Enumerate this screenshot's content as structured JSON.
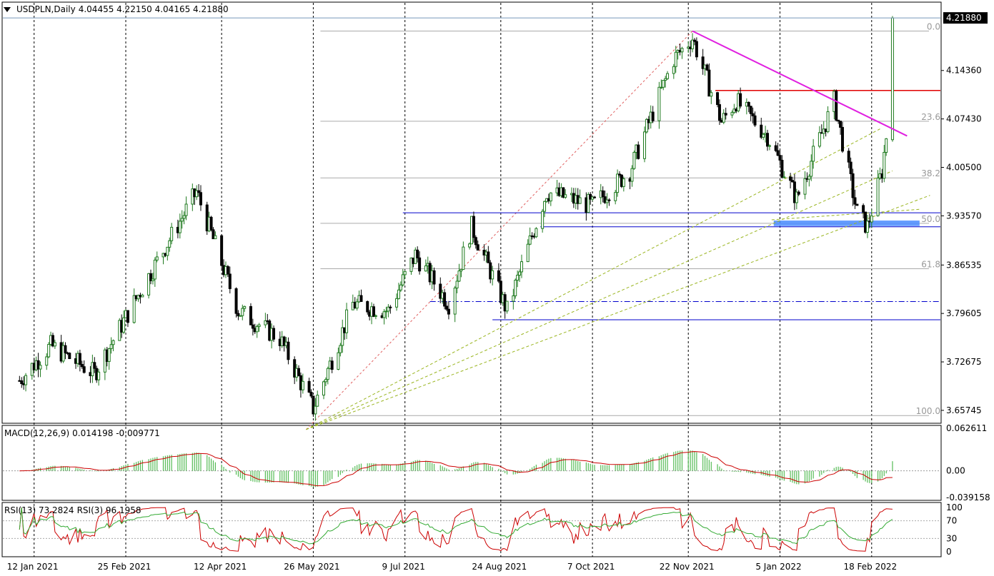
{
  "header": {
    "symbol": "USDPLN,Daily",
    "ohlc": "4.04455 4.22150 4.04165 4.21880"
  },
  "price_axis": {
    "ticks": [
      "4.14360",
      "4.07430",
      "4.00500",
      "3.93570",
      "3.86535",
      "3.79605",
      "3.72675",
      "3.65745"
    ],
    "current_price": "4.21880"
  },
  "fibonacci": {
    "levels": [
      "0.0",
      "23.6",
      "38.2",
      "50.0",
      "61.8",
      "100.0"
    ]
  },
  "macd": {
    "label": "MACD(12,26,9)",
    "values": "0.014198 -0.009771",
    "axis": [
      "0.062611",
      "0.00",
      "-0.039158"
    ]
  },
  "rsi": {
    "label": "RSI(13) 73.2824",
    "label2": "RSI(3) 96.1958",
    "axis": [
      "100",
      "70",
      "30",
      "0"
    ]
  },
  "time_axis": [
    "12 Jan 2021",
    "25 Feb 2021",
    "12 Apr 2021",
    "26 May 2021",
    "9 Jul 2021",
    "24 Aug 2021",
    "7 Oct 2021",
    "22 Nov 2021",
    "5 Jan 2022",
    "18 Feb 2022"
  ],
  "colors": {
    "up": "#1f7a1f",
    "down": "#000000",
    "trend_magenta": "#e020e0",
    "resistance_red": "#e00000",
    "support_blue": "#0000cc",
    "zone_blue": "#4a8cff",
    "macd_hist": "#55bb55",
    "macd_signal": "#cc0000",
    "rsi_fast": "#cc0000",
    "rsi_slow": "#33aa33"
  },
  "chart_data": {
    "type": "candlestick",
    "instrument": "USDPLN",
    "timeframe": "Daily",
    "last_bar": {
      "open": 4.04455,
      "high": 4.2215,
      "low": 4.04165,
      "close": 4.2188
    },
    "price_keypoints": [
      {
        "date": "2021-01-05",
        "close": 3.7
      },
      {
        "date": "2021-01-20",
        "close": 3.75
      },
      {
        "date": "2021-02-10",
        "close": 3.71
      },
      {
        "date": "2021-03-10",
        "close": 3.86
      },
      {
        "date": "2021-03-31",
        "close": 3.97
      },
      {
        "date": "2021-04-20",
        "close": 3.8
      },
      {
        "date": "2021-05-10",
        "close": 3.76
      },
      {
        "date": "2021-05-26",
        "close": 3.66
      },
      {
        "date": "2021-06-14",
        "close": 3.81
      },
      {
        "date": "2021-07-01",
        "close": 3.8
      },
      {
        "date": "2021-07-14",
        "close": 3.88
      },
      {
        "date": "2021-07-30",
        "close": 3.81
      },
      {
        "date": "2021-08-10",
        "close": 3.92
      },
      {
        "date": "2021-08-27",
        "close": 3.8
      },
      {
        "date": "2021-09-15",
        "close": 3.97
      },
      {
        "date": "2021-10-07",
        "close": 3.95
      },
      {
        "date": "2021-10-25",
        "close": 4.0
      },
      {
        "date": "2021-11-15",
        "close": 4.16
      },
      {
        "date": "2021-11-24",
        "close": 4.19
      },
      {
        "date": "2021-12-08",
        "close": 4.07
      },
      {
        "date": "2021-12-15",
        "close": 4.1
      },
      {
        "date": "2021-12-30",
        "close": 4.05
      },
      {
        "date": "2022-01-13",
        "close": 3.96
      },
      {
        "date": "2022-01-31",
        "close": 4.1
      },
      {
        "date": "2022-02-11",
        "close": 3.94
      },
      {
        "date": "2022-02-16",
        "close": 3.92
      },
      {
        "date": "2022-02-23",
        "close": 4.0
      },
      {
        "date": "2022-02-25",
        "close": 4.05
      },
      {
        "date": "2022-02-28",
        "close": 4.2188
      }
    ],
    "fib_retracement": {
      "from": 3.65,
      "to": 4.2,
      "levels": {
        "0.0": 4.2,
        "23.6": 4.071,
        "38.2": 3.99,
        "50.0": 3.925,
        "61.8": 3.86,
        "100.0": 3.65
      }
    },
    "horizontal_lines": {
      "resistance": 4.115,
      "support_upper": 3.94,
      "support_lower": 3.92,
      "support_dashdot": 3.813,
      "support_bottom": 3.787
    },
    "demand_zone": [
      3.921,
      3.929
    ],
    "downtrend_line": [
      {
        "date": "2021-11-24",
        "price": 4.2
      },
      {
        "date": "2022-03-07",
        "price": 4.05
      }
    ],
    "macd": {
      "params": "12,26,9",
      "main": 0.014198,
      "signal": -0.009771,
      "ylim": [
        -0.039158,
        0.062611
      ]
    },
    "rsi": {
      "rsi13": 73.2824,
      "rsi3": 96.1958,
      "levels": [
        30,
        70
      ],
      "ylim": [
        0,
        100
      ]
    },
    "ylim": [
      3.64,
      4.224
    ],
    "xlabel": "",
    "ylabel": ""
  }
}
